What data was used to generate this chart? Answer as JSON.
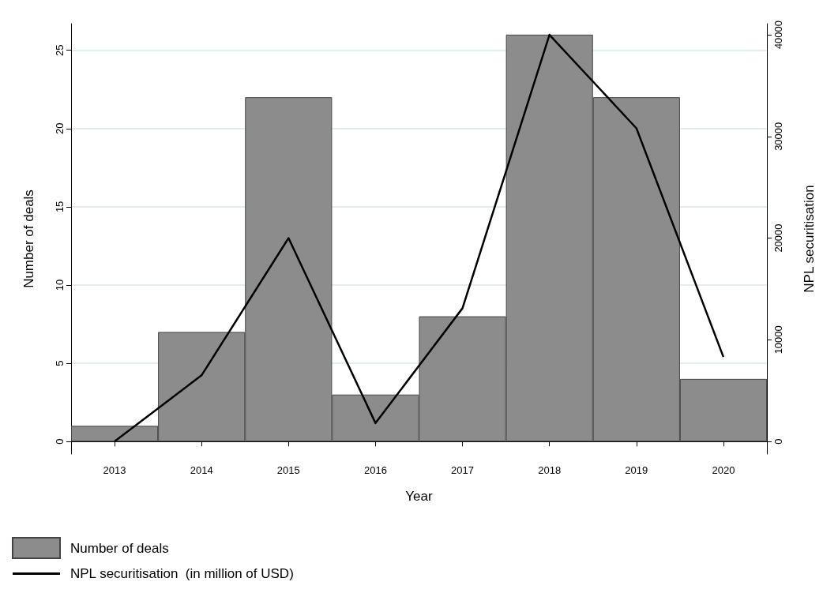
{
  "chart_data": {
    "type": "bar",
    "xlabel": "Year",
    "ylabel": "Number of deals",
    "y2label": "NPL securitisation",
    "categories": [
      "2013",
      "2014",
      "2015",
      "2016",
      "2017",
      "2018",
      "2019",
      "2020"
    ],
    "series": [
      {
        "name": "Number of deals",
        "color": "#8c8c8c",
        "values": [
          1,
          7,
          22,
          3,
          8,
          26,
          22,
          4
        ]
      },
      {
        "name": "NPL securitisation  (in million of USD)",
        "type": "line",
        "axis": "y2",
        "color": "#000000",
        "values": [
          0,
          6500,
          20000,
          1800,
          13100,
          40000,
          30800,
          8300
        ]
      }
    ],
    "ylim": [
      -0.8,
      26.7
    ],
    "yticks": [
      0,
      5,
      10,
      15,
      20,
      25
    ],
    "y2lim": [
      -1240,
      41090
    ],
    "y2ticks": [
      0,
      10000,
      20000,
      30000,
      40000
    ],
    "grid": "y",
    "legend": "bottom left",
    "marker": "none",
    "line_style": "solid"
  }
}
